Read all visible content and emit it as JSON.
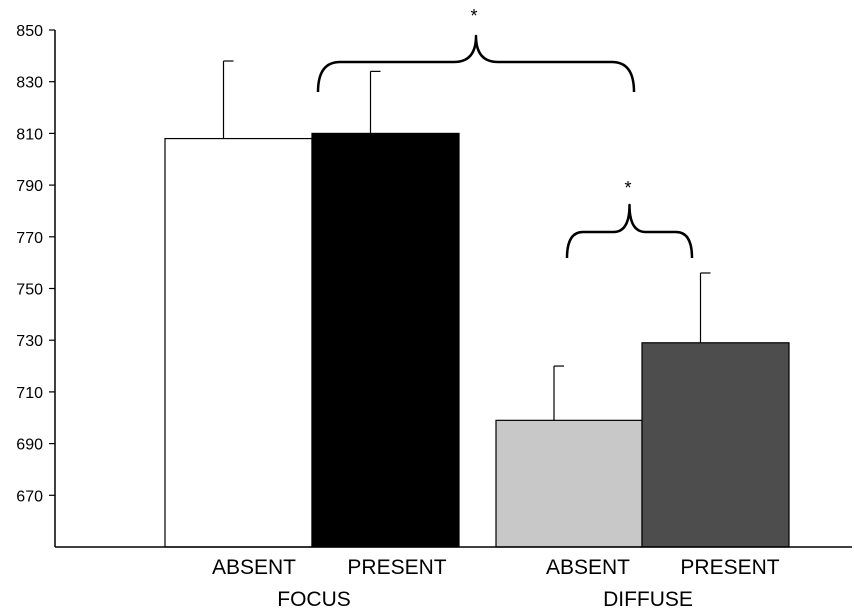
{
  "chart_data": {
    "type": "bar",
    "ylim": [
      650,
      850
    ],
    "yticks": [
      670,
      690,
      710,
      730,
      750,
      770,
      790,
      810,
      830,
      850
    ],
    "grid": false,
    "groups": [
      "FOCUS",
      "DIFFUSE"
    ],
    "bars": [
      {
        "group": "FOCUS",
        "label": "ABSENT",
        "value": 808,
        "error": 30,
        "color": "#ffffff"
      },
      {
        "group": "FOCUS",
        "label": "PRESENT",
        "value": 810,
        "error": 24,
        "color": "#000000"
      },
      {
        "group": "DIFFUSE",
        "label": "ABSENT",
        "value": 699,
        "error": 21,
        "color": "#c8c8c8"
      },
      {
        "group": "DIFFUSE",
        "label": "PRESENT",
        "value": 729,
        "error": 27,
        "color": "#4d4d4d"
      }
    ],
    "significance": [
      {
        "between": "groups",
        "label": "*"
      },
      {
        "between": "DIFFUSE",
        "label": "*"
      }
    ]
  }
}
